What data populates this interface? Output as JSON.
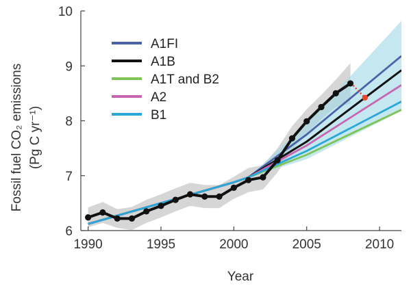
{
  "chart_data": {
    "type": "line",
    "xlabel": "Year",
    "ylabel_lines": [
      "Fossil fuel CO₂ emissions",
      "(Pg C yr⁻¹)"
    ],
    "xlim": [
      1989.5,
      2011.5
    ],
    "ylim": [
      6,
      10
    ],
    "xticks": [
      1990,
      1995,
      2000,
      2005,
      2010
    ],
    "yticks": [
      6,
      7,
      8,
      9,
      10
    ],
    "grid": false,
    "legend_position": "top-left",
    "series": [
      {
        "name": "A1FI",
        "color": "#4a63a6",
        "x": [
          1990,
          2000,
          2001,
          2005,
          2011.5
        ],
        "y": [
          6.12,
          6.88,
          6.97,
          7.75,
          9.18
        ]
      },
      {
        "name": "A1B",
        "color": "#111111",
        "x": [
          1990,
          2000,
          2001,
          2005,
          2011.5
        ],
        "y": [
          6.12,
          6.88,
          6.97,
          7.62,
          8.92
        ]
      },
      {
        "name": "A1T and B2",
        "color": "#7fc456",
        "x": [
          1990,
          2000,
          2001,
          2005,
          2011.5
        ],
        "y": [
          6.12,
          6.88,
          6.97,
          7.38,
          8.2
        ]
      },
      {
        "name": "A2",
        "color": "#c865b0",
        "x": [
          1990,
          2000,
          2001,
          2005,
          2011.5
        ],
        "y": [
          6.12,
          6.88,
          6.97,
          7.55,
          8.65
        ]
      },
      {
        "name": "B1",
        "color": "#2aa7d8",
        "x": [
          1990,
          2000,
          2001,
          2005,
          2011.5
        ],
        "y": [
          6.12,
          6.88,
          6.97,
          7.45,
          8.35
        ]
      }
    ],
    "scenario_range": {
      "color": "#9fd8e6",
      "x": [
        2001,
        2005,
        2011.5
      ],
      "upper": [
        6.97,
        7.95,
        9.82
      ],
      "lower": [
        6.97,
        7.3,
        8.18
      ]
    },
    "observed": {
      "color": "#111111",
      "band_color": "#cccccc",
      "x": [
        1990,
        1991,
        1992,
        1993,
        1994,
        1995,
        1996,
        1997,
        1998,
        1999,
        2000,
        2001,
        2002,
        2003,
        2004,
        2005,
        2006,
        2007,
        2008
      ],
      "y": [
        6.24,
        6.33,
        6.22,
        6.22,
        6.35,
        6.45,
        6.56,
        6.66,
        6.62,
        6.62,
        6.78,
        6.92,
        6.97,
        7.28,
        7.68,
        7.99,
        8.25,
        8.5,
        8.68
      ],
      "upper": [
        6.42,
        6.52,
        6.39,
        6.43,
        6.56,
        6.66,
        6.77,
        6.87,
        6.83,
        6.83,
        6.98,
        7.14,
        7.19,
        7.5,
        7.9,
        8.21,
        8.47,
        8.75,
        9.05
      ],
      "lower": [
        6.06,
        6.14,
        6.05,
        6.01,
        6.14,
        6.24,
        6.35,
        6.45,
        6.41,
        6.41,
        6.58,
        6.7,
        6.75,
        7.06,
        7.46,
        7.77,
        8.03,
        8.25,
        8.31
      ]
    },
    "projection": {
      "color": "#e8452b",
      "from": {
        "x": 2008,
        "y": 8.68
      },
      "to": {
        "x": 2009,
        "y": 8.42
      }
    }
  }
}
